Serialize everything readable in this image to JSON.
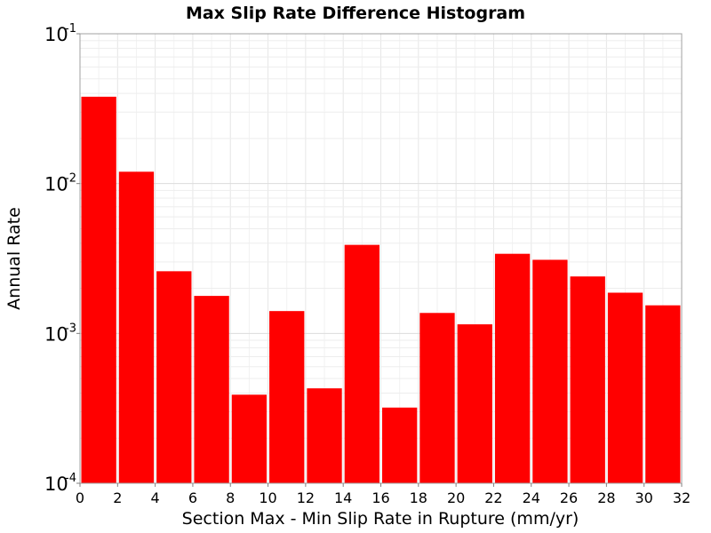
{
  "chart_data": {
    "type": "bar",
    "title": "Max Slip Rate Difference Histogram",
    "xlabel": "Section Max - Min Slip Rate in Rupture (mm/yr)",
    "ylabel": "Annual Rate",
    "xlim": [
      0,
      32
    ],
    "ylim": [
      0.0001,
      0.1
    ],
    "yscale": "log",
    "grid": true,
    "legend": "none",
    "bar_color": "#ff0000",
    "xticks": [
      "0",
      "2",
      "4",
      "6",
      "8",
      "10",
      "12",
      "14",
      "16",
      "18",
      "20",
      "22",
      "24",
      "26",
      "28",
      "30",
      "32"
    ],
    "yticks": [
      {
        "base": "10",
        "exp": "-1",
        "value": 0.1
      },
      {
        "base": "10",
        "exp": "-2",
        "value": 0.01
      },
      {
        "base": "10",
        "exp": "-3",
        "value": 0.001
      },
      {
        "base": "10",
        "exp": "-4",
        "value": 0.0001
      }
    ],
    "bins": [
      {
        "x": 1,
        "value": 0.038
      },
      {
        "x": 3,
        "value": 0.012
      },
      {
        "x": 5,
        "value": 0.0026
      },
      {
        "x": 7,
        "value": 0.00178
      },
      {
        "x": 9,
        "value": 0.00039
      },
      {
        "x": 11,
        "value": 0.00141
      },
      {
        "x": 13,
        "value": 0.00043
      },
      {
        "x": 15,
        "value": 0.0039
      },
      {
        "x": 17,
        "value": 0.00032
      },
      {
        "x": 19,
        "value": 0.00137
      },
      {
        "x": 21,
        "value": 0.00115
      },
      {
        "x": 23,
        "value": 0.0034
      },
      {
        "x": 25,
        "value": 0.0031
      },
      {
        "x": 27,
        "value": 0.0024
      },
      {
        "x": 29,
        "value": 0.00187
      },
      {
        "x": 31,
        "value": 0.00154
      }
    ]
  }
}
